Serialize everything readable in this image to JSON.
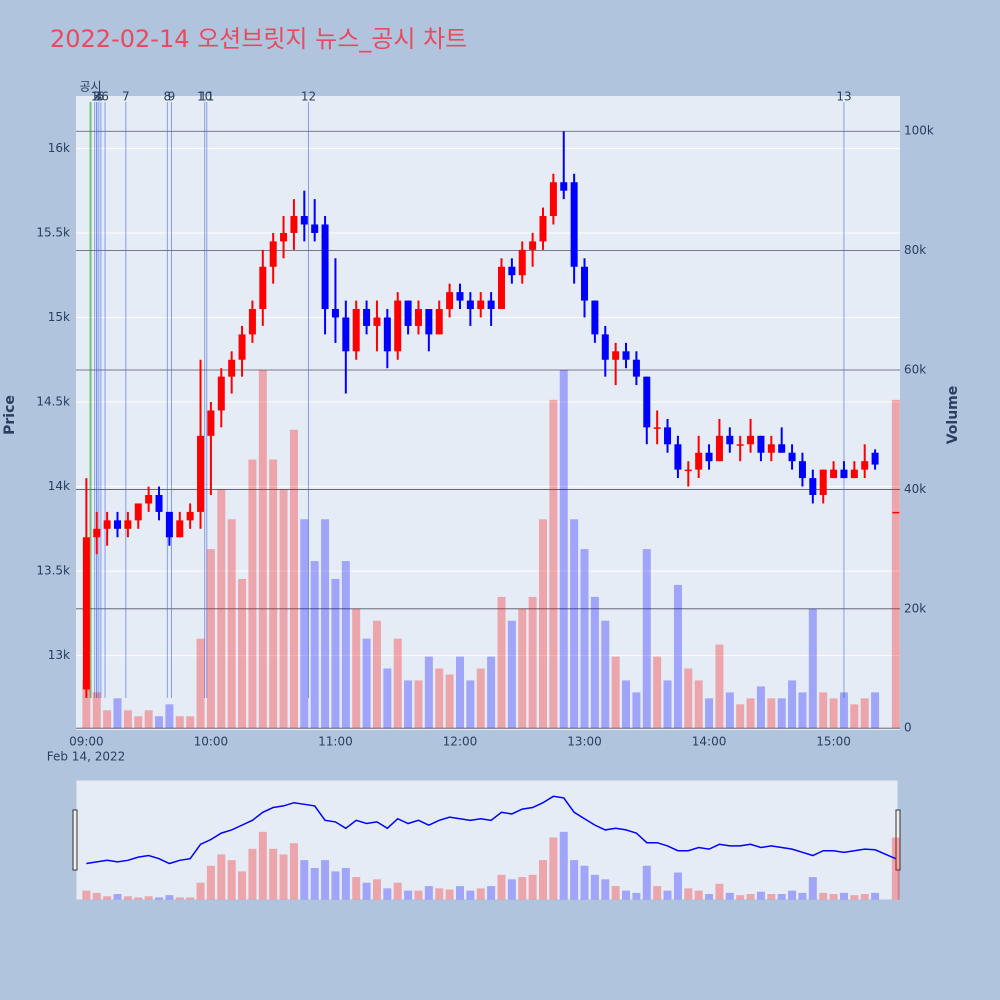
{
  "chart_data": {
    "type": "candlestick",
    "title": "2022-02-14 오션브릿지 뉴스_공시 차트",
    "y_label": "Price",
    "y2_label": "Volume",
    "x_date_label": "Feb 14, 2022",
    "increasing_color": "#ff0000",
    "decreasing_color": "#0000ff",
    "x": [
      "09:00",
      "09:05",
      "09:10",
      "09:15",
      "09:20",
      "09:25",
      "09:30",
      "09:35",
      "09:40",
      "09:45",
      "09:50",
      "09:55",
      "10:00",
      "10:05",
      "10:10",
      "10:15",
      "10:20",
      "10:25",
      "10:30",
      "10:35",
      "10:40",
      "10:45",
      "10:50",
      "10:55",
      "11:00",
      "11:05",
      "11:10",
      "11:15",
      "11:20",
      "11:25",
      "11:30",
      "11:35",
      "11:40",
      "11:45",
      "11:50",
      "11:55",
      "12:00",
      "12:05",
      "12:10",
      "12:15",
      "12:20",
      "12:25",
      "12:30",
      "12:35",
      "12:40",
      "12:45",
      "12:50",
      "12:55",
      "13:00",
      "13:05",
      "13:10",
      "13:15",
      "13:20",
      "13:25",
      "13:30",
      "13:35",
      "13:40",
      "13:45",
      "13:50",
      "13:55",
      "14:00",
      "14:05",
      "14:10",
      "14:15",
      "14:20",
      "14:25",
      "14:30",
      "14:35",
      "14:40",
      "14:45",
      "14:50",
      "14:55",
      "15:00",
      "15:05",
      "15:10",
      "15:15",
      "15:20",
      "15:30"
    ],
    "open": [
      12800,
      13700,
      13750,
      13800,
      13750,
      13800,
      13900,
      13950,
      13850,
      13700,
      13800,
      13850,
      14300,
      14450,
      14650,
      14750,
      14900,
      15050,
      15300,
      15450,
      15500,
      15600,
      15550,
      15550,
      15050,
      15000,
      14800,
      15050,
      14950,
      15000,
      14800,
      15100,
      14950,
      15050,
      14900,
      15050,
      15150,
      15100,
      15050,
      15100,
      15050,
      15300,
      15250,
      15400,
      15450,
      15600,
      15800,
      15800,
      15300,
      15100,
      14900,
      14750,
      14800,
      14750,
      14650,
      14350,
      14350,
      14250,
      14100,
      14100,
      14200,
      14150,
      14300,
      14250,
      14250,
      14300,
      14200,
      14250,
      14200,
      14150,
      14050,
      13950,
      14050,
      14100,
      14050,
      14100,
      14200,
      13850
    ],
    "high": [
      14050,
      13850,
      13850,
      13850,
      13850,
      13900,
      14000,
      14000,
      13850,
      13850,
      13900,
      14750,
      14500,
      14700,
      14800,
      14950,
      15100,
      15400,
      15500,
      15600,
      15700,
      15750,
      15700,
      15600,
      15350,
      15100,
      15100,
      15100,
      15100,
      15050,
      15150,
      15100,
      15100,
      15050,
      15100,
      15200,
      15200,
      15150,
      15150,
      15150,
      15350,
      15350,
      15450,
      15500,
      15650,
      15850,
      16100,
      15850,
      15350,
      15100,
      14950,
      14850,
      14850,
      14800,
      14650,
      14450,
      14400,
      14300,
      14150,
      14300,
      14250,
      14400,
      14350,
      14300,
      14400,
      14300,
      14300,
      14350,
      14250,
      14200,
      14100,
      14100,
      14150,
      14150,
      14150,
      14250,
      14220,
      13850
    ],
    "low": [
      12750,
      13600,
      13650,
      13700,
      13700,
      13750,
      13850,
      13800,
      13650,
      13700,
      13750,
      13750,
      13950,
      14350,
      14550,
      14650,
      14850,
      14950,
      15200,
      15350,
      15400,
      15450,
      15450,
      14900,
      14850,
      14550,
      14750,
      14900,
      14800,
      14700,
      14750,
      14900,
      14900,
      14800,
      14900,
      15000,
      15050,
      14950,
      15000,
      14950,
      15050,
      15200,
      15200,
      15300,
      15400,
      15550,
      15700,
      15200,
      15000,
      14850,
      14650,
      14600,
      14700,
      14600,
      14250,
      14250,
      14200,
      14050,
      14000,
      14050,
      14100,
      14150,
      14200,
      14150,
      14200,
      14150,
      14150,
      14200,
      14100,
      14000,
      13900,
      13900,
      14050,
      14050,
      14050,
      14050,
      14100,
      13850
    ],
    "close": [
      13700,
      13750,
      13800,
      13750,
      13800,
      13900,
      13950,
      13850,
      13700,
      13800,
      13850,
      14300,
      14450,
      14650,
      14750,
      14900,
      15050,
      15300,
      15450,
      15500,
      15600,
      15550,
      15500,
      15050,
      15000,
      14800,
      15050,
      14950,
      15000,
      14800,
      15100,
      14950,
      15050,
      14900,
      15050,
      15150,
      15100,
      15050,
      15100,
      15050,
      15300,
      15250,
      15400,
      15450,
      15600,
      15800,
      15750,
      15300,
      15100,
      14900,
      14750,
      14800,
      14750,
      14650,
      14350,
      14350,
      14250,
      14100,
      14100,
      14200,
      14150,
      14300,
      14250,
      14250,
      14300,
      14200,
      14250,
      14200,
      14150,
      14050,
      13950,
      14100,
      14100,
      14050,
      14100,
      14150,
      14130,
      13850
    ],
    "volume": [
      8000,
      6000,
      3000,
      5000,
      3000,
      2000,
      3000,
      2000,
      4000,
      2000,
      2000,
      15000,
      30000,
      40000,
      35000,
      25000,
      45000,
      60000,
      45000,
      40000,
      50000,
      35000,
      28000,
      35000,
      25000,
      28000,
      20000,
      15000,
      18000,
      10000,
      15000,
      8000,
      8000,
      12000,
      10000,
      9000,
      12000,
      8000,
      10000,
      12000,
      22000,
      18000,
      20000,
      22000,
      35000,
      55000,
      60000,
      35000,
      30000,
      22000,
      18000,
      12000,
      8000,
      6000,
      30000,
      12000,
      8000,
      24000,
      10000,
      8000,
      5000,
      14000,
      6000,
      4000,
      5000,
      7000,
      5000,
      5000,
      8000,
      6000,
      20000,
      6000,
      5000,
      6000,
      4000,
      5000,
      6000,
      55000
    ],
    "xlim": [
      "08:55",
      "15:32"
    ],
    "xticks": [
      "09:00",
      "10:00",
      "11:00",
      "12:00",
      "13:00",
      "14:00",
      "15:00"
    ],
    "ylim": [
      12560,
      16310
    ],
    "yticks": [
      {
        "value": 13000,
        "label": "13k"
      },
      {
        "value": 13500,
        "label": "13.5k"
      },
      {
        "value": 14000,
        "label": "14k"
      },
      {
        "value": 14500,
        "label": "14.5k"
      },
      {
        "value": 15000,
        "label": "15k"
      },
      {
        "value": 15500,
        "label": "15.5k"
      },
      {
        "value": 16000,
        "label": "16k"
      }
    ],
    "y2lim": [
      -300,
      105900
    ],
    "y2ticks": [
      0,
      {
        "value": 20000,
        "label": "20k"
      },
      {
        "value": 40000,
        "label": "40k"
      },
      {
        "value": 60000,
        "label": "60k"
      },
      {
        "value": 80000,
        "label": "80k"
      },
      {
        "value": 100000,
        "label": "100k"
      }
    ],
    "news": [
      {
        "time": "09:02",
        "label": "공시",
        "color": "#2ca02c"
      },
      {
        "time": "09:04",
        "label": "1",
        "color": "#4169e1"
      },
      {
        "time": "09:05",
        "label": "2",
        "color": "#4169e1"
      },
      {
        "time": "09:05",
        "label": "3",
        "color": "#4169e1"
      },
      {
        "time": "09:06",
        "label": "4",
        "color": "#4169e1"
      },
      {
        "time": "09:07",
        "label": "5",
        "color": "#4169e1"
      },
      {
        "time": "09:09",
        "label": "6",
        "color": "#4169e1"
      },
      {
        "time": "09:19",
        "label": "7",
        "color": "#4169e1"
      },
      {
        "time": "09:39",
        "label": "8",
        "color": "#4169e1"
      },
      {
        "time": "09:41",
        "label": "9",
        "color": "#4169e1"
      },
      {
        "time": "09:57",
        "label": "10",
        "color": "#4169e1"
      },
      {
        "time": "09:58",
        "label": "11",
        "color": "#4169e1"
      },
      {
        "time": "10:47",
        "label": "12",
        "color": "#4169e1"
      },
      {
        "time": "15:05",
        "label": "13",
        "color": "#4169e1"
      }
    ]
  }
}
